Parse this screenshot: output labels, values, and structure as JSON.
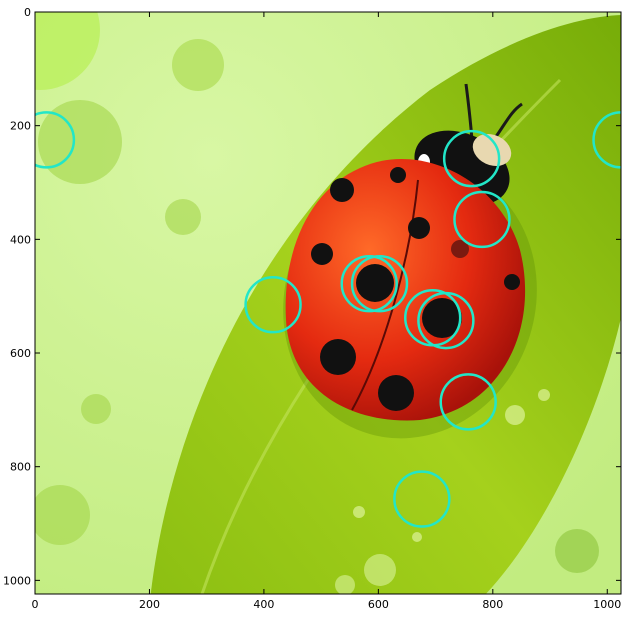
{
  "chart_data": {
    "type": "scatter",
    "background": "image",
    "background_subject": "ladybug on a green leaf with water droplets",
    "title": "",
    "xlabel": "",
    "ylabel": "",
    "xlim": [
      0,
      1024
    ],
    "ylim": [
      1024,
      0
    ],
    "y_inverted": true,
    "grid": false,
    "legend": "none",
    "xticks": [
      0,
      200,
      400,
      600,
      800,
      1000
    ],
    "yticks": [
      0,
      200,
      400,
      600,
      800,
      1000
    ],
    "marker": "open circle",
    "marker_color": "#22e6c8",
    "marker_radius": 48,
    "points": [
      {
        "x": 20,
        "y": 225
      },
      {
        "x": 763,
        "y": 258
      },
      {
        "x": 781,
        "y": 365
      },
      {
        "x": 416,
        "y": 515
      },
      {
        "x": 584,
        "y": 478
      },
      {
        "x": 602,
        "y": 478
      },
      {
        "x": 695,
        "y": 538
      },
      {
        "x": 718,
        "y": 543
      },
      {
        "x": 757,
        "y": 686
      },
      {
        "x": 676,
        "y": 857
      },
      {
        "x": 1024,
        "y": 225
      }
    ]
  }
}
